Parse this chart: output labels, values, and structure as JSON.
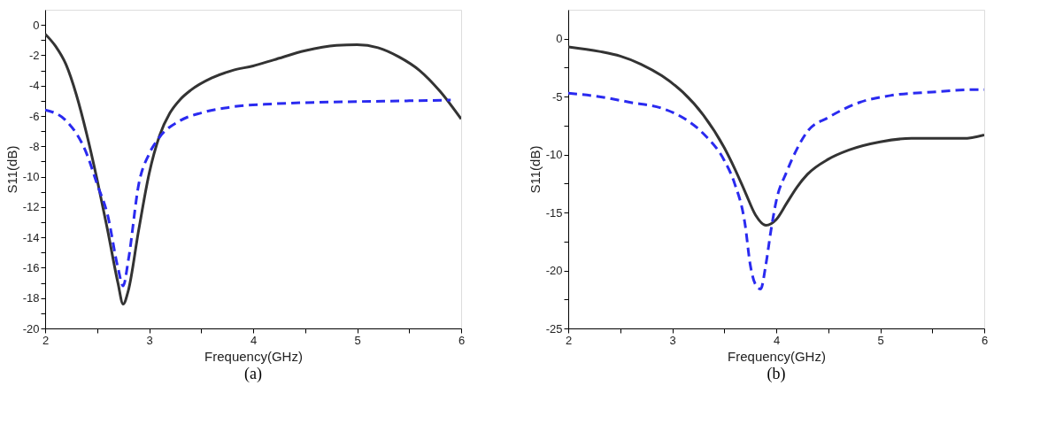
{
  "chart_data": [
    {
      "type": "line",
      "xlabel": "Frequency(GHz)",
      "ylabel": "S11(dB)",
      "annotations": [
        "(a)"
      ],
      "xlim": [
        2,
        6
      ],
      "ylim": [
        -20,
        1
      ],
      "xticks": [
        2,
        {
          "value": 2.5,
          "label": null
        },
        3,
        {
          "value": 3.5,
          "label": null
        },
        4,
        {
          "value": 4.5,
          "label": null
        },
        5,
        {
          "value": 5.5,
          "label": null
        },
        6
      ],
      "yticks": [
        -20,
        {
          "value": -19,
          "label": null
        },
        -18,
        {
          "value": -17,
          "label": null
        },
        -16,
        {
          "value": -15,
          "label": null
        },
        -14,
        {
          "value": -13,
          "label": null
        },
        -12,
        {
          "value": -11,
          "label": null
        },
        -10,
        {
          "value": -9,
          "label": null
        },
        -8,
        {
          "value": -7,
          "label": null
        },
        -6,
        {
          "value": -5,
          "label": null
        },
        -4,
        {
          "value": -3,
          "label": null
        },
        -2,
        {
          "value": -1,
          "label": null
        },
        0
      ],
      "grid": false,
      "series": [
        {
          "color": "#333333",
          "line_style": "solid",
          "x": [
            2,
            2.1,
            2.2,
            2.3,
            2.4,
            2.5,
            2.6,
            2.7,
            2.75,
            2.8,
            2.9,
            3.0,
            3.1,
            3.2,
            3.3,
            3.4,
            3.6,
            3.8,
            4.0,
            4.2,
            4.5,
            4.8,
            5.0,
            5.2,
            5.4,
            5.6,
            5.8,
            6.0
          ],
          "values": [
            -0.6,
            -1.4,
            -2.6,
            -4.6,
            -7.2,
            -10.2,
            -13.5,
            -17.0,
            -18.4,
            -17.5,
            -13.5,
            -9.8,
            -7.3,
            -5.8,
            -4.9,
            -4.3,
            -3.5,
            -3.0,
            -2.7,
            -2.3,
            -1.7,
            -1.35,
            -1.3,
            -1.5,
            -2.1,
            -3.0,
            -4.4,
            -6.2
          ]
        },
        {
          "color": "#2a2af0",
          "line_style": "dashed",
          "x": [
            2,
            2.2,
            2.4,
            2.5,
            2.6,
            2.7,
            2.75,
            2.8,
            2.9,
            3.0,
            3.1,
            3.3,
            3.5,
            3.8,
            4.2,
            4.6,
            5.0,
            5.5,
            5.9
          ],
          "values": [
            -5.6,
            -6.3,
            -8.5,
            -10.5,
            -12.5,
            -16.0,
            -17.2,
            -15.5,
            -10.5,
            -8.5,
            -7.4,
            -6.3,
            -5.8,
            -5.4,
            -5.2,
            -5.1,
            -5.05,
            -5.0,
            -4.95
          ]
        }
      ]
    },
    {
      "type": "line",
      "xlabel": "Frequency(GHz)",
      "ylabel": "S11(dB)",
      "annotations": [
        "(b)"
      ],
      "xlim": [
        2,
        6
      ],
      "ylim": [
        -25,
        2.5
      ],
      "xticks": [
        2,
        {
          "value": 2.5,
          "label": null
        },
        3,
        {
          "value": 3.5,
          "label": null
        },
        4,
        {
          "value": 4.5,
          "label": null
        },
        5,
        {
          "value": 5.5,
          "label": null
        },
        6
      ],
      "yticks": [
        -25,
        {
          "value": -22.5,
          "label": null
        },
        -20,
        {
          "value": -17.5,
          "label": null
        },
        -15,
        {
          "value": -12.5,
          "label": null
        },
        -10,
        {
          "value": -7.5,
          "label": null
        },
        -5,
        {
          "value": -2.5,
          "label": null
        },
        0
      ],
      "grid": false,
      "series": [
        {
          "color": "#333333",
          "line_style": "solid",
          "x": [
            2,
            2.3,
            2.5,
            2.7,
            2.9,
            3.1,
            3.3,
            3.5,
            3.6,
            3.7,
            3.8,
            3.9,
            4.0,
            4.1,
            4.2,
            4.3,
            4.5,
            4.7,
            5.0,
            5.3,
            5.6,
            5.8,
            6.0
          ],
          "values": [
            -0.7,
            -1.1,
            -1.5,
            -2.2,
            -3.2,
            -4.6,
            -6.6,
            -9.4,
            -11.2,
            -13.2,
            -15.2,
            -16.1,
            -15.6,
            -14.2,
            -12.8,
            -11.7,
            -10.4,
            -9.6,
            -8.9,
            -8.6,
            -8.6,
            -8.6,
            -8.3
          ]
        },
        {
          "color": "#2a2af0",
          "line_style": "dashed",
          "x": [
            2,
            2.3,
            2.6,
            2.9,
            3.1,
            3.3,
            3.5,
            3.6,
            3.7,
            3.75,
            3.8,
            3.85,
            3.9,
            3.95,
            4.0,
            4.1,
            4.2,
            4.3,
            4.5,
            4.8,
            5.1,
            5.5,
            5.9,
            6.0
          ],
          "values": [
            -4.7,
            -5.0,
            -5.5,
            -6.0,
            -6.8,
            -8.2,
            -10.5,
            -12.5,
            -16.0,
            -19.5,
            -21.2,
            -21.6,
            -19.5,
            -16.5,
            -14.0,
            -11.5,
            -9.5,
            -8.0,
            -6.8,
            -5.5,
            -4.9,
            -4.6,
            -4.4,
            -4.4
          ]
        }
      ]
    }
  ]
}
